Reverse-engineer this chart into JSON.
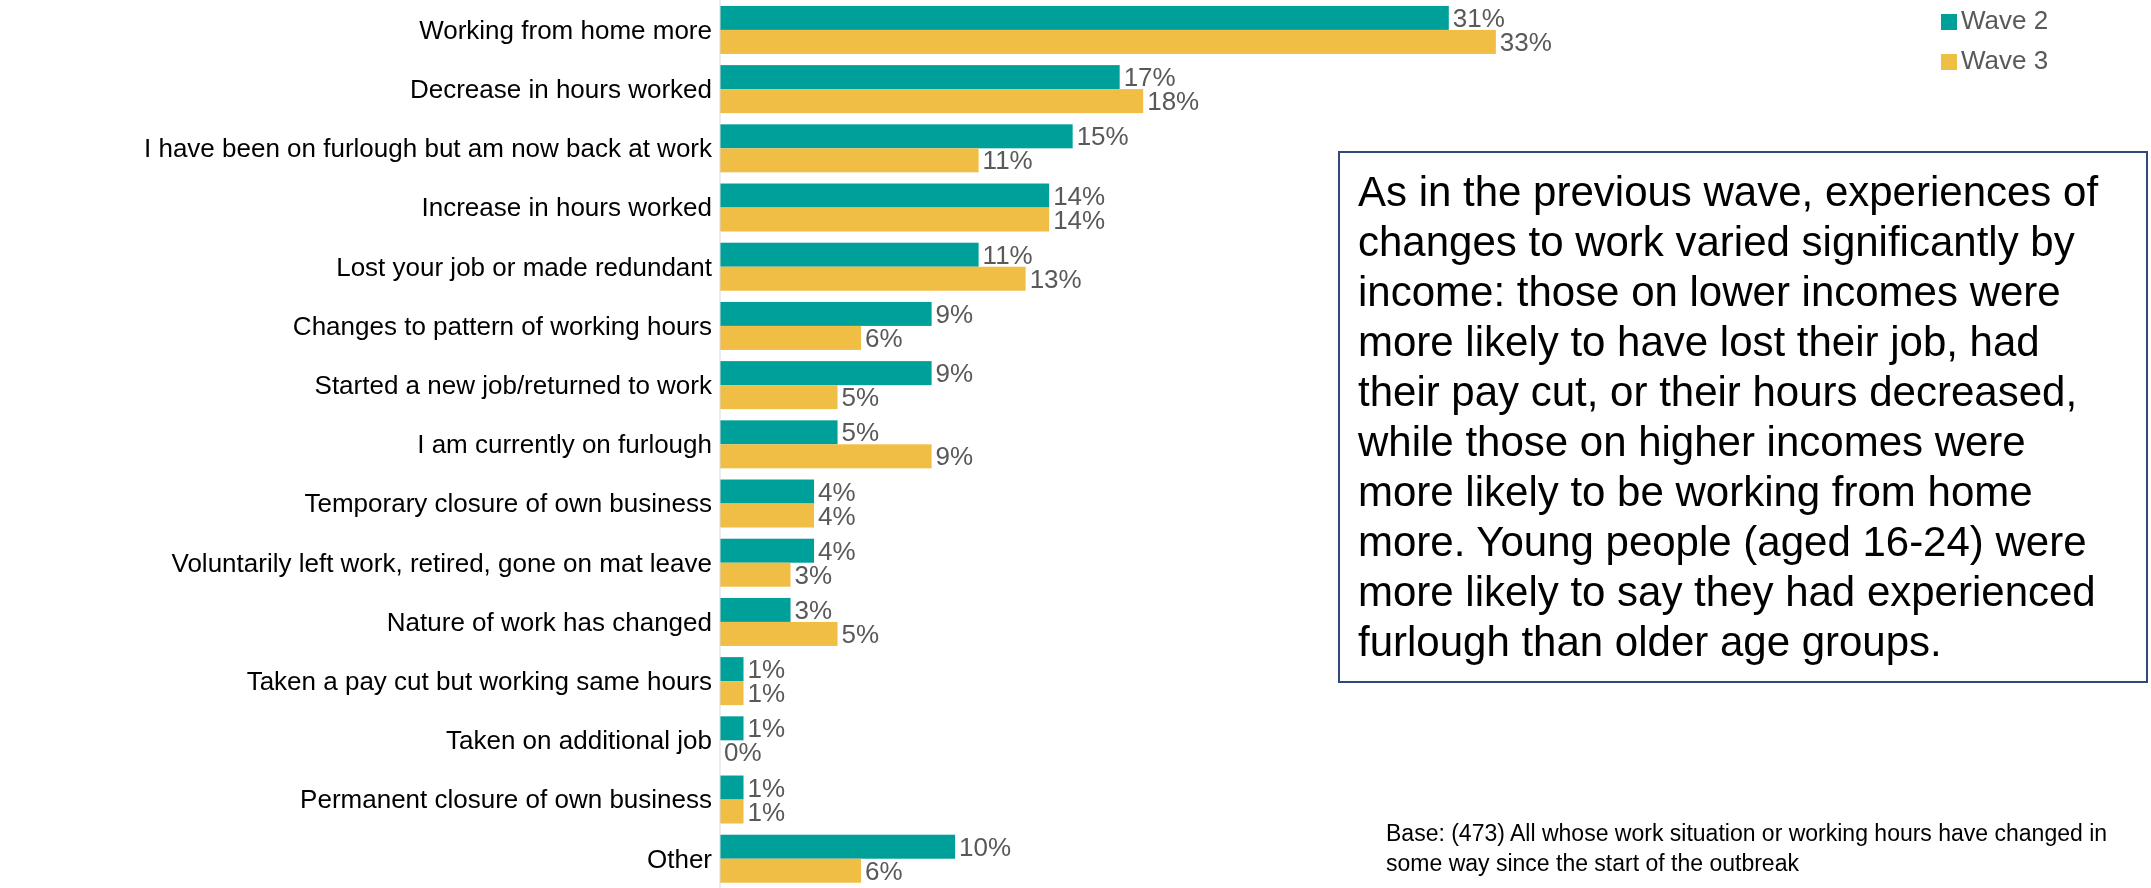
{
  "chart_data": {
    "type": "bar",
    "orientation": "horizontal",
    "categories": [
      "Working from home more",
      "Decrease in hours worked",
      "I have been on furlough but am now back at work",
      "Increase in hours worked",
      "Lost your job or made redundant",
      "Changes to pattern of working hours",
      "Started a new job/returned to work",
      "I am currently on furlough",
      "Temporary closure of own business",
      "Voluntarily left work, retired, gone on mat leave",
      "Nature of work has changed",
      "Taken a pay cut but working same hours",
      "Taken on additional job",
      "Permanent closure of own business",
      "Other"
    ],
    "series": [
      {
        "name": "Wave 2",
        "color": "#00a09a",
        "values": [
          31,
          17,
          15,
          14,
          11,
          9,
          9,
          5,
          4,
          4,
          3,
          1,
          1,
          1,
          10
        ],
        "value_labels": [
          "31%",
          "17%",
          "15%",
          "14%",
          "11%",
          "9%",
          "9%",
          "5%",
          "4%",
          "4%",
          "3%",
          "1%",
          "1%",
          "1%",
          "10%"
        ]
      },
      {
        "name": "Wave 3",
        "color": "#f0bd45",
        "values": [
          33,
          18,
          11,
          14,
          13,
          6,
          5,
          9,
          4,
          3,
          5,
          1,
          0,
          1,
          6
        ],
        "value_labels": [
          "33%",
          "18%",
          "11%",
          "14%",
          "13%",
          "6%",
          "5%",
          "9%",
          "4%",
          "3%",
          "5%",
          "1%",
          "0%",
          "1%",
          "6%"
        ]
      }
    ],
    "legend": "top right",
    "tick_labels": "y",
    "annotations": [
      "As in the previous wave, experiences of changes to work varied significantly by income: those on lower incomes were more likely to have lost their job, had their pay cut, or their hours decreased, while those on higher incomes were more likely to be working from home more. Young people (aged 16-24) were more likely to say they had experienced furlough than older age groups.",
      "Base: (473) All whose work situation or working hours have changed in some way since the start of the outbreak"
    ]
  }
}
